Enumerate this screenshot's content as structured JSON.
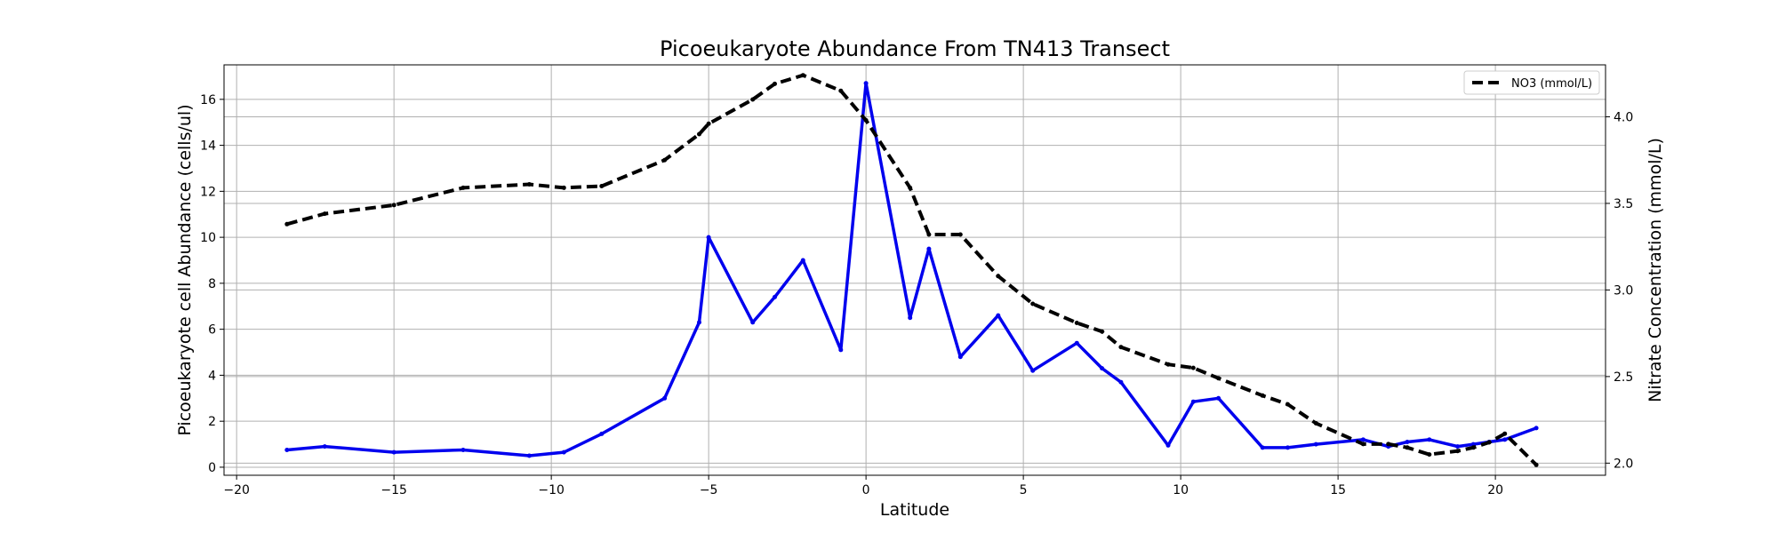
{
  "chart_data": {
    "type": "line",
    "title": "Picoeukaryote Abundance From TN413 Transect",
    "xlabel": "Latitude",
    "ylabel_left": "Picoeukaryote cell Abundance (cells/ul)",
    "ylabel_right": "Nitrate Concentration (mmol/L)",
    "xlim": [
      -20.4,
      23.5
    ],
    "ylim_left": [
      -0.35,
      17.5
    ],
    "ylim_right": [
      1.93,
      4.3
    ],
    "x_ticks": [
      -20,
      -15,
      -10,
      -5,
      0,
      5,
      10,
      15,
      20
    ],
    "y_left_ticks": [
      0,
      2,
      4,
      6,
      8,
      10,
      12,
      14,
      16
    ],
    "y_right_ticks": [
      2.0,
      2.5,
      3.0,
      3.5,
      4.0
    ],
    "grid": true,
    "legend_position": "top-right",
    "series": [
      {
        "axis": "left",
        "color": "#0000ee",
        "style": "solid",
        "x": [
          -18.4,
          -17.2,
          -15.0,
          -12.8,
          -10.7,
          -9.6,
          -8.4,
          -6.4,
          -5.3,
          -5.0,
          -3.6,
          -2.9,
          -2.0,
          -0.8,
          0.0,
          1.4,
          2.0,
          3.0,
          4.2,
          5.3,
          6.7,
          7.5,
          8.1,
          9.6,
          10.4,
          11.2,
          12.6,
          13.4,
          14.3,
          15.8,
          16.6,
          17.2,
          17.9,
          18.8,
          19.3,
          19.8,
          20.3,
          21.3
        ],
        "values": [
          0.75,
          0.9,
          0.65,
          0.75,
          0.5,
          0.65,
          1.45,
          3.0,
          6.3,
          10.0,
          6.3,
          7.4,
          9.0,
          5.1,
          16.7,
          6.5,
          9.5,
          4.8,
          6.6,
          4.2,
          5.4,
          4.3,
          3.7,
          0.95,
          2.85,
          3.0,
          0.85,
          0.85,
          1.0,
          1.2,
          0.9,
          1.1,
          1.2,
          0.9,
          1.0,
          1.1,
          1.2,
          1.7
        ]
      },
      {
        "name": "NO3 (mmol/L)",
        "axis": "right",
        "color": "#000000",
        "style": "dashed",
        "x": [
          -18.4,
          -17.2,
          -15.0,
          -12.8,
          -10.7,
          -9.6,
          -8.4,
          -6.4,
          -5.3,
          -5.0,
          -3.6,
          -2.9,
          -2.0,
          -0.8,
          0.0,
          1.4,
          2.0,
          3.0,
          4.2,
          5.3,
          6.7,
          7.5,
          8.1,
          9.6,
          10.4,
          11.2,
          12.6,
          13.4,
          14.3,
          15.8,
          16.6,
          17.2,
          17.9,
          18.8,
          19.3,
          19.8,
          20.3,
          21.3
        ],
        "values": [
          3.38,
          3.44,
          3.49,
          3.59,
          3.61,
          3.59,
          3.6,
          3.75,
          3.9,
          3.96,
          4.1,
          4.19,
          4.24,
          4.15,
          3.98,
          3.59,
          3.32,
          3.32,
          3.08,
          2.92,
          2.81,
          2.76,
          2.67,
          2.57,
          2.55,
          2.49,
          2.39,
          2.34,
          2.23,
          2.11,
          2.11,
          2.09,
          2.05,
          2.07,
          2.09,
          2.12,
          2.17,
          1.99
        ]
      }
    ]
  }
}
